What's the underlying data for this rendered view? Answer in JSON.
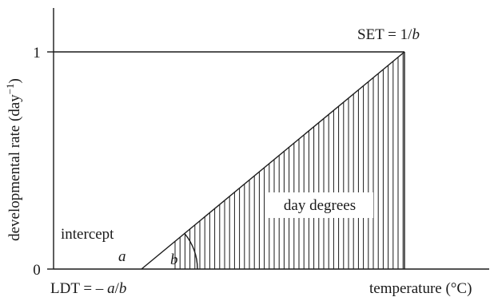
{
  "axes": {
    "y_label": "developmental rate (day",
    "y_label_exp": "−1",
    "y_label_close": ")",
    "x_label": "temperature (°C)",
    "y_tick_top": "1",
    "y_tick_origin": "0"
  },
  "annotations": {
    "set_prefix": "SET = 1/",
    "set_var": "b",
    "day_degrees": "day degrees",
    "intercept": "intercept",
    "intercept_var": "a",
    "slope_var": "b",
    "ldt_prefix": "LDT = – ",
    "ldt_var_a": "a",
    "ldt_slash": "/",
    "ldt_var_b": "b"
  }
}
